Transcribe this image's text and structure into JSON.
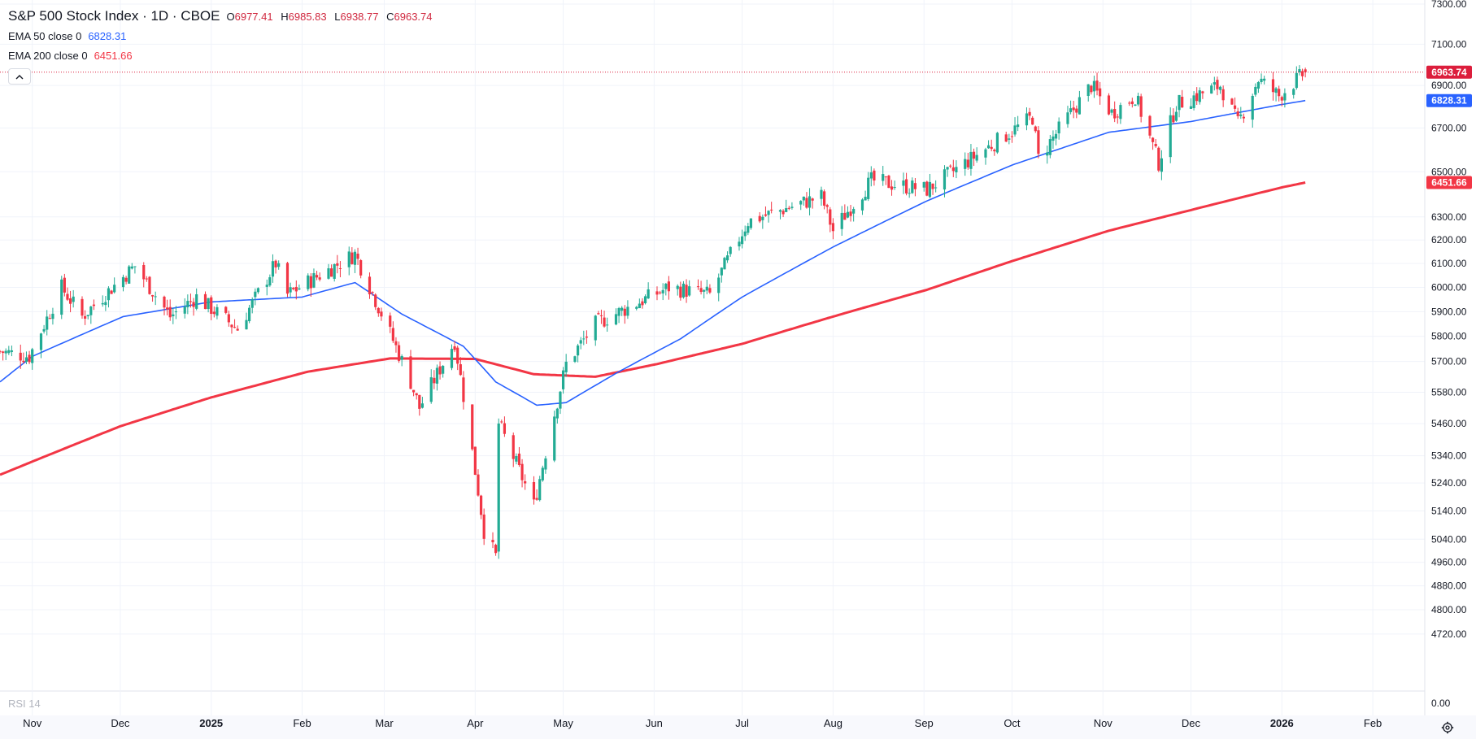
{
  "header": {
    "symbol_title": "S&P 500 Stock Index · 1D · CBOE",
    "ohlc": {
      "o_label": "O",
      "o_value": "6977.41",
      "h_label": "H",
      "h_value": "6985.83",
      "l_label": "L",
      "l_value": "6938.77",
      "c_label": "C",
      "c_value": "6963.74"
    },
    "ema50": {
      "label": "EMA 50 close 0",
      "value": "6828.31",
      "color": "#2962ff"
    },
    "ema200": {
      "label": "EMA 200 close 0",
      "value": "6451.66",
      "color": "#f23645"
    },
    "collapse_icon": "chevron-up-icon"
  },
  "rsi_label": "RSI 14",
  "settings_icon": "gear-icon",
  "colors": {
    "up": "#089981",
    "up_body": "#22ab94",
    "down": "#f23645",
    "ema50": "#2962ff",
    "ema200": "#f23645",
    "last_price_tag": "#dc1e3c",
    "grid": "#f0f3fa"
  },
  "chart_data": {
    "type": "candlestick",
    "title": "S&P 500 Stock Index · 1D · CBOE",
    "x_range": [
      "2024-10-21",
      "2026-02-14"
    ],
    "y_scale": "log",
    "y_range": [
      4680,
      7300
    ],
    "y_ticks": [
      4720,
      4800,
      4880,
      4960,
      5040,
      5140,
      5240,
      5340,
      5460,
      5580,
      5700,
      5800,
      5900,
      6000,
      6100,
      6200,
      6300,
      6500,
      6700,
      6900,
      7100,
      7300
    ],
    "y_tick_labels": [
      "4720.00",
      "4800.00",
      "4880.00",
      "4960.00",
      "5040.00",
      "5140.00",
      "5240.00",
      "5340.00",
      "5460.00",
      "5580.00",
      "5700.00",
      "5800.00",
      "5900.00",
      "6000.00",
      "6100.00",
      "6200.00",
      "6300.00",
      "6500.00",
      "6700.00",
      "6900.00",
      "7100.00",
      "7300.00"
    ],
    "rsi_axis_label": "0.00",
    "x_ticks": [
      {
        "date": "2024-11-01",
        "label": "Nov",
        "bold": false
      },
      {
        "date": "2024-12-01",
        "label": "Dec",
        "bold": false
      },
      {
        "date": "2025-01-01",
        "label": "2025",
        "bold": true
      },
      {
        "date": "2025-02-01",
        "label": "Feb",
        "bold": false
      },
      {
        "date": "2025-03-01",
        "label": "Mar",
        "bold": false
      },
      {
        "date": "2025-04-01",
        "label": "Apr",
        "bold": false
      },
      {
        "date": "2025-05-01",
        "label": "May",
        "bold": false
      },
      {
        "date": "2025-06-01",
        "label": "Jun",
        "bold": false
      },
      {
        "date": "2025-07-01",
        "label": "Jul",
        "bold": false
      },
      {
        "date": "2025-08-01",
        "label": "Aug",
        "bold": false
      },
      {
        "date": "2025-09-01",
        "label": "Sep",
        "bold": false
      },
      {
        "date": "2025-10-01",
        "label": "Oct",
        "bold": false
      },
      {
        "date": "2025-11-01",
        "label": "Nov",
        "bold": false
      },
      {
        "date": "2025-12-01",
        "label": "Dec",
        "bold": false
      },
      {
        "date": "2026-01-01",
        "label": "2026",
        "bold": true
      },
      {
        "date": "2026-02-01",
        "label": "Feb",
        "bold": false
      }
    ],
    "price_key_points": [
      [
        "2024-10-21",
        5740
      ],
      [
        "2024-10-31",
        5720
      ],
      [
        "2024-11-11",
        6000
      ],
      [
        "2024-11-18",
        5880
      ],
      [
        "2024-12-06",
        6090
      ],
      [
        "2024-12-18",
        5880
      ],
      [
        "2024-12-27",
        5960
      ],
      [
        "2025-01-10",
        5830
      ],
      [
        "2025-01-23",
        6100
      ],
      [
        "2025-01-27",
        5970
      ],
      [
        "2025-02-19",
        6140
      ],
      [
        "2025-03-10",
        5620
      ],
      [
        "2025-03-13",
        5520
      ],
      [
        "2025-03-25",
        5780
      ],
      [
        "2025-04-04",
        5070
      ],
      [
        "2025-04-08",
        4980
      ],
      [
        "2025-04-09",
        5460
      ],
      [
        "2025-04-21",
        5160
      ],
      [
        "2025-05-02",
        5690
      ],
      [
        "2025-05-12",
        5850
      ],
      [
        "2025-06-06",
        6000
      ],
      [
        "2025-06-20",
        5970
      ],
      [
        "2025-07-03",
        6280
      ],
      [
        "2025-07-28",
        6390
      ],
      [
        "2025-08-01",
        6240
      ],
      [
        "2025-08-14",
        6460
      ],
      [
        "2025-09-02",
        6420
      ],
      [
        "2025-10-08",
        6750
      ],
      [
        "2025-10-10",
        6560
      ],
      [
        "2025-10-28",
        6900
      ],
      [
        "2025-11-04",
        6770
      ],
      [
        "2025-11-12",
        6850
      ],
      [
        "2025-11-20",
        6540
      ],
      [
        "2025-11-26",
        6810
      ],
      [
        "2025-12-11",
        6900
      ],
      [
        "2025-12-17",
        6720
      ],
      [
        "2025-12-24",
        6930
      ],
      [
        "2025-12-31",
        6850
      ],
      [
        "2026-01-09",
        6963.74
      ]
    ],
    "last_candle": {
      "date": "2026-01-09",
      "open": 6977.41,
      "high": 6985.83,
      "low": 6938.77,
      "close": 6963.74
    },
    "ema50_points": [
      [
        "2024-10-21",
        5620
      ],
      [
        "2024-11-01",
        5720
      ],
      [
        "2024-12-02",
        5880
      ],
      [
        "2025-01-01",
        5940
      ],
      [
        "2025-02-01",
        5960
      ],
      [
        "2025-02-19",
        6020
      ],
      [
        "2025-03-07",
        5890
      ],
      [
        "2025-03-28",
        5760
      ],
      [
        "2025-04-08",
        5620
      ],
      [
        "2025-04-22",
        5530
      ],
      [
        "2025-05-02",
        5540
      ],
      [
        "2025-05-20",
        5660
      ],
      [
        "2025-06-10",
        5790
      ],
      [
        "2025-07-01",
        5960
      ],
      [
        "2025-08-01",
        6170
      ],
      [
        "2025-09-02",
        6370
      ],
      [
        "2025-10-01",
        6530
      ],
      [
        "2025-11-03",
        6680
      ],
      [
        "2025-12-01",
        6730
      ],
      [
        "2026-01-01",
        6810
      ],
      [
        "2026-01-09",
        6828.31
      ]
    ],
    "ema200_points": [
      [
        "2024-10-21",
        5270
      ],
      [
        "2024-12-01",
        5450
      ],
      [
        "2025-01-01",
        5560
      ],
      [
        "2025-02-03",
        5660
      ],
      [
        "2025-03-03",
        5712
      ],
      [
        "2025-04-01",
        5710
      ],
      [
        "2025-04-21",
        5650
      ],
      [
        "2025-05-12",
        5640
      ],
      [
        "2025-06-02",
        5690
      ],
      [
        "2025-07-01",
        5770
      ],
      [
        "2025-08-01",
        5880
      ],
      [
        "2025-09-02",
        5990
      ],
      [
        "2025-10-01",
        6110
      ],
      [
        "2025-11-03",
        6240
      ],
      [
        "2025-12-01",
        6330
      ],
      [
        "2026-01-01",
        6430
      ],
      [
        "2026-01-09",
        6451.66
      ]
    ],
    "series": [
      {
        "name": "EMA 50 close 0",
        "last_value": 6828.31
      },
      {
        "name": "EMA 200 close 0",
        "last_value": 6451.66
      }
    ],
    "last_price_label": "6963.74",
    "ema50_label": "6828.31",
    "ema200_label": "6451.66",
    "grid": true
  }
}
